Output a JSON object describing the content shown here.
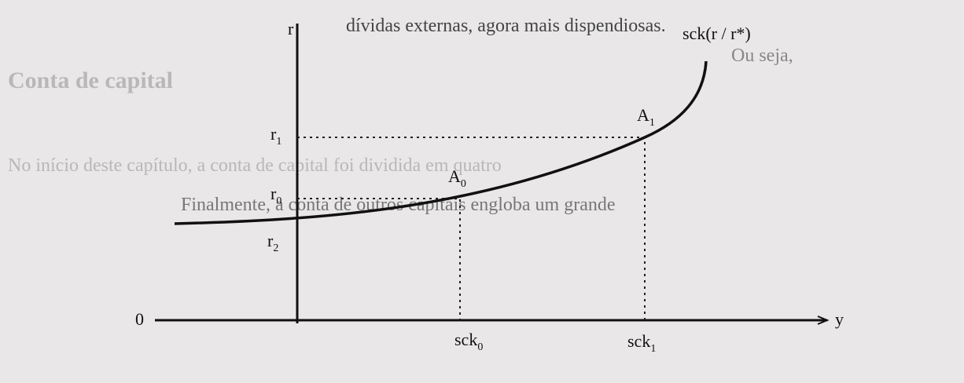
{
  "diagram": {
    "axis_y_label": "r",
    "axis_x_label": "y",
    "origin_label": "0",
    "curve_label": "sck(r / r*)",
    "points": [
      {
        "base": "A",
        "sub": "0"
      },
      {
        "base": "A",
        "sub": "1"
      }
    ],
    "y_labels": [
      {
        "base": "r",
        "sub": "1"
      },
      {
        "base": "r",
        "sub": "0"
      },
      {
        "base": "r",
        "sub": "2"
      }
    ],
    "x_labels": [
      {
        "base": "sck",
        "sub": "0"
      },
      {
        "base": "sck",
        "sub": "1"
      }
    ]
  },
  "background_text": [
    "dívidas externas, agora mais dispendiosas.",
    "Ou seja,",
    "Conta de capital",
    "No início deste capítulo, a conta de capital foi dividida em quatro",
    "Finalmente, a conta de outros capitais engloba um grande"
  ]
}
